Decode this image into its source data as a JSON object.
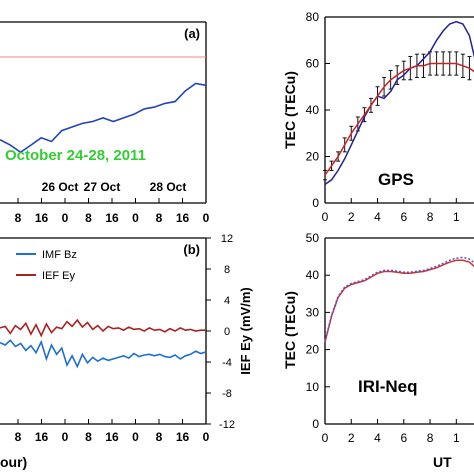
{
  "chart_data": [
    {
      "type": "line",
      "panel_label": "(a)",
      "annotation": "October 24-28, 2011",
      "annotation_color": "#33cc33",
      "day_labels": [
        "26 Oct",
        "27 Oct",
        "28 Oct"
      ],
      "x_tick_labels": [
        "8",
        "16",
        "0",
        "8",
        "16",
        "0",
        "8",
        "16",
        "0"
      ],
      "reference_line_color": "#ff8080",
      "series": [
        {
          "color": "#2244bb",
          "x": [
            0,
            4,
            8,
            12,
            16,
            20,
            24,
            28,
            32,
            36,
            40,
            44,
            48,
            52,
            56,
            60,
            64,
            68,
            72,
            76,
            80
          ],
          "y": [
            0.35,
            0.32,
            0.28,
            0.32,
            0.36,
            0.34,
            0.4,
            0.42,
            0.44,
            0.45,
            0.47,
            0.45,
            0.47,
            0.49,
            0.52,
            0.53,
            0.55,
            0.56,
            0.62,
            0.66,
            0.65
          ]
        }
      ]
    },
    {
      "type": "line",
      "panel_label": "(b)",
      "ylabel": "IEF Ey (mV/m)",
      "yticks": [
        "12",
        "8",
        "4",
        "0",
        "-4",
        "-8",
        "-12"
      ],
      "ylim": [
        -12,
        12
      ],
      "x_tick_labels": [
        "8",
        "16",
        "0",
        "8",
        "16",
        "0",
        "8",
        "16",
        "0"
      ],
      "xlabel": "our)",
      "series": [
        {
          "name": "IMF Bz",
          "color": "#1f6fcf",
          "x": [
            0,
            2,
            4,
            6,
            8,
            10,
            12,
            14,
            16,
            18,
            20,
            22,
            24,
            26,
            28,
            30,
            32,
            34,
            36,
            38,
            40,
            42,
            44,
            46,
            48,
            50,
            52,
            54,
            56,
            58,
            60,
            62,
            64,
            66,
            68,
            70,
            72,
            74,
            76,
            78,
            80
          ],
          "y": [
            -1.5,
            -1.8,
            -1.2,
            -2.0,
            -1.6,
            -2.5,
            -1.9,
            -2.8,
            -1.4,
            -3.6,
            -1.8,
            -3.0,
            -2.2,
            -4.4,
            -3.2,
            -4.6,
            -3.0,
            -4.1,
            -3.4,
            -3.9,
            -3.5,
            -3.8,
            -3.6,
            -3.4,
            -3.2,
            -3.5,
            -2.9,
            -3.3,
            -3.1,
            -3.0,
            -3.2,
            -3.0,
            -3.3,
            -3.4,
            -3.1,
            -3.6,
            -3.2,
            -3.0,
            -2.6,
            -2.9,
            -2.7
          ]
        },
        {
          "name": "IEF Ey",
          "color": "#aa2222",
          "x": [
            0,
            2,
            4,
            6,
            8,
            10,
            12,
            14,
            16,
            18,
            20,
            22,
            24,
            26,
            28,
            30,
            32,
            34,
            36,
            38,
            40,
            42,
            44,
            46,
            48,
            50,
            52,
            54,
            56,
            58,
            60,
            62,
            64,
            66,
            68,
            70,
            72,
            74,
            76,
            78,
            80
          ],
          "y": [
            0.4,
            0.6,
            -0.3,
            0.7,
            0.2,
            1.0,
            -0.4,
            0.8,
            -0.6,
            0.9,
            -0.2,
            0.5,
            0.3,
            1.2,
            0.6,
            1.4,
            0.5,
            1.1,
            0.2,
            0.7,
            0.0,
            0.6,
            0.3,
            0.4,
            0.1,
            0.5,
            0.2,
            0.3,
            0.0,
            0.4,
            0.1,
            0.2,
            -0.1,
            0.3,
            0.0,
            0.4,
            0.1,
            0.2,
            0.0,
            0.1,
            0.1
          ]
        }
      ]
    },
    {
      "type": "line",
      "title": "GPS",
      "ylabel": "TEC (TECu)",
      "ylim": [
        0,
        80
      ],
      "yticks": [
        0,
        20,
        40,
        60,
        80
      ],
      "xlim": [
        0,
        11.5
      ],
      "xticks": [
        "0",
        "2",
        "4",
        "6",
        "8",
        "1"
      ],
      "series": [
        {
          "color": "#22229a",
          "x": [
            0,
            0.5,
            1,
            1.5,
            2,
            2.5,
            3,
            3.5,
            4,
            4.5,
            5,
            5.5,
            6,
            6.5,
            7,
            7.5,
            8,
            8.5,
            9,
            9.5,
            10,
            10.5,
            11,
            11.5
          ],
          "y": [
            8,
            10,
            14,
            19,
            25,
            31,
            37,
            42,
            46,
            45,
            48,
            53,
            55,
            58,
            59,
            62,
            65,
            70,
            74,
            77,
            78,
            77,
            72,
            60
          ]
        },
        {
          "color": "#cc2222",
          "errorbars": true,
          "x": [
            0,
            0.5,
            1,
            1.5,
            2,
            2.5,
            3,
            3.5,
            4,
            4.5,
            5,
            5.5,
            6,
            6.5,
            7,
            7.5,
            8,
            8.5,
            9,
            9.5,
            10,
            10.5,
            11,
            11.5
          ],
          "y": [
            12,
            16,
            20,
            25,
            30,
            34,
            38,
            42,
            46,
            50,
            53,
            55,
            57,
            58,
            59,
            59,
            60,
            60,
            60,
            60,
            60,
            59,
            58,
            56
          ],
          "err": [
            2,
            2,
            2,
            3,
            3,
            3,
            3,
            3,
            4,
            4,
            4,
            4,
            4,
            5,
            5,
            5,
            5,
            5,
            5,
            5,
            5,
            5,
            5,
            5
          ]
        }
      ]
    },
    {
      "type": "line",
      "title": "IRI-Neq",
      "ylabel": "TEC (TECu)",
      "xlabel": "UT",
      "ylim": [
        0,
        50
      ],
      "yticks": [
        0,
        10,
        20,
        30,
        40,
        50
      ],
      "xlim": [
        0,
        11.5
      ],
      "xticks": [
        "0",
        "2",
        "4",
        "6",
        "8",
        "1"
      ],
      "series": [
        {
          "color": "#cc3333",
          "x": [
            0,
            0.5,
            1,
            1.5,
            2,
            2.5,
            3,
            3.5,
            4,
            4.5,
            5,
            5.5,
            6,
            6.5,
            7,
            7.5,
            8,
            8.5,
            9,
            9.5,
            10,
            10.5,
            11,
            11.5
          ],
          "y": [
            22,
            29,
            34,
            36.5,
            37.5,
            38,
            38.5,
            39.5,
            40.5,
            41,
            41,
            40.8,
            40.5,
            40.5,
            40.8,
            41,
            41.5,
            42,
            42.8,
            43.5,
            44,
            44,
            43.5,
            42
          ]
        },
        {
          "color": "#5555cc",
          "x": [
            0,
            0.5,
            1,
            1.5,
            2,
            2.5,
            3,
            3.5,
            4,
            4.5,
            5,
            5.5,
            6,
            6.5,
            7,
            7.5,
            8,
            8.5,
            9,
            9.5,
            10,
            10.5,
            11,
            11.5
          ],
          "y": [
            22.3,
            29.3,
            34.3,
            36.8,
            37.8,
            38.3,
            38.8,
            39.8,
            40.8,
            41.3,
            41.3,
            41.1,
            40.8,
            40.8,
            41.1,
            41.3,
            41.8,
            42.4,
            43.2,
            44,
            44.6,
            44.8,
            44.3,
            43
          ]
        }
      ]
    }
  ]
}
